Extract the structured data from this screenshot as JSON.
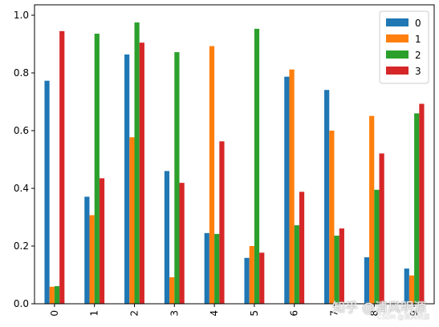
{
  "chart_data": {
    "type": "bar",
    "categories": [
      "0",
      "1",
      "2",
      "3",
      "4",
      "5",
      "6",
      "7",
      "8",
      "9"
    ],
    "series": [
      {
        "name": "0",
        "color": "#1f77b4",
        "values": [
          0.773,
          0.371,
          0.864,
          0.46,
          0.245,
          0.159,
          0.787,
          0.741,
          0.161,
          0.122
        ]
      },
      {
        "name": "1",
        "color": "#ff7f0e",
        "values": [
          0.059,
          0.307,
          0.577,
          0.092,
          0.893,
          0.2,
          0.812,
          0.6,
          0.651,
          0.098
        ]
      },
      {
        "name": "2",
        "color": "#2ca02c",
        "values": [
          0.061,
          0.936,
          0.975,
          0.872,
          0.242,
          0.953,
          0.272,
          0.236,
          0.395,
          0.66
        ]
      },
      {
        "name": "3",
        "color": "#d62728",
        "values": [
          0.945,
          0.435,
          0.905,
          0.419,
          0.563,
          0.177,
          0.388,
          0.261,
          0.521,
          0.693
        ]
      }
    ],
    "yticks": [
      "0.0",
      "0.2",
      "0.4",
      "0.6",
      "0.8",
      "1.0"
    ],
    "ylim": [
      0,
      1.0
    ],
    "grid": false,
    "legend_position": "top-right",
    "title": "",
    "xlabel": "",
    "ylabel": ""
  },
  "watermark": {
    "main": "知乎 @清风明源",
    "sub": "CSDN @清风明源"
  }
}
